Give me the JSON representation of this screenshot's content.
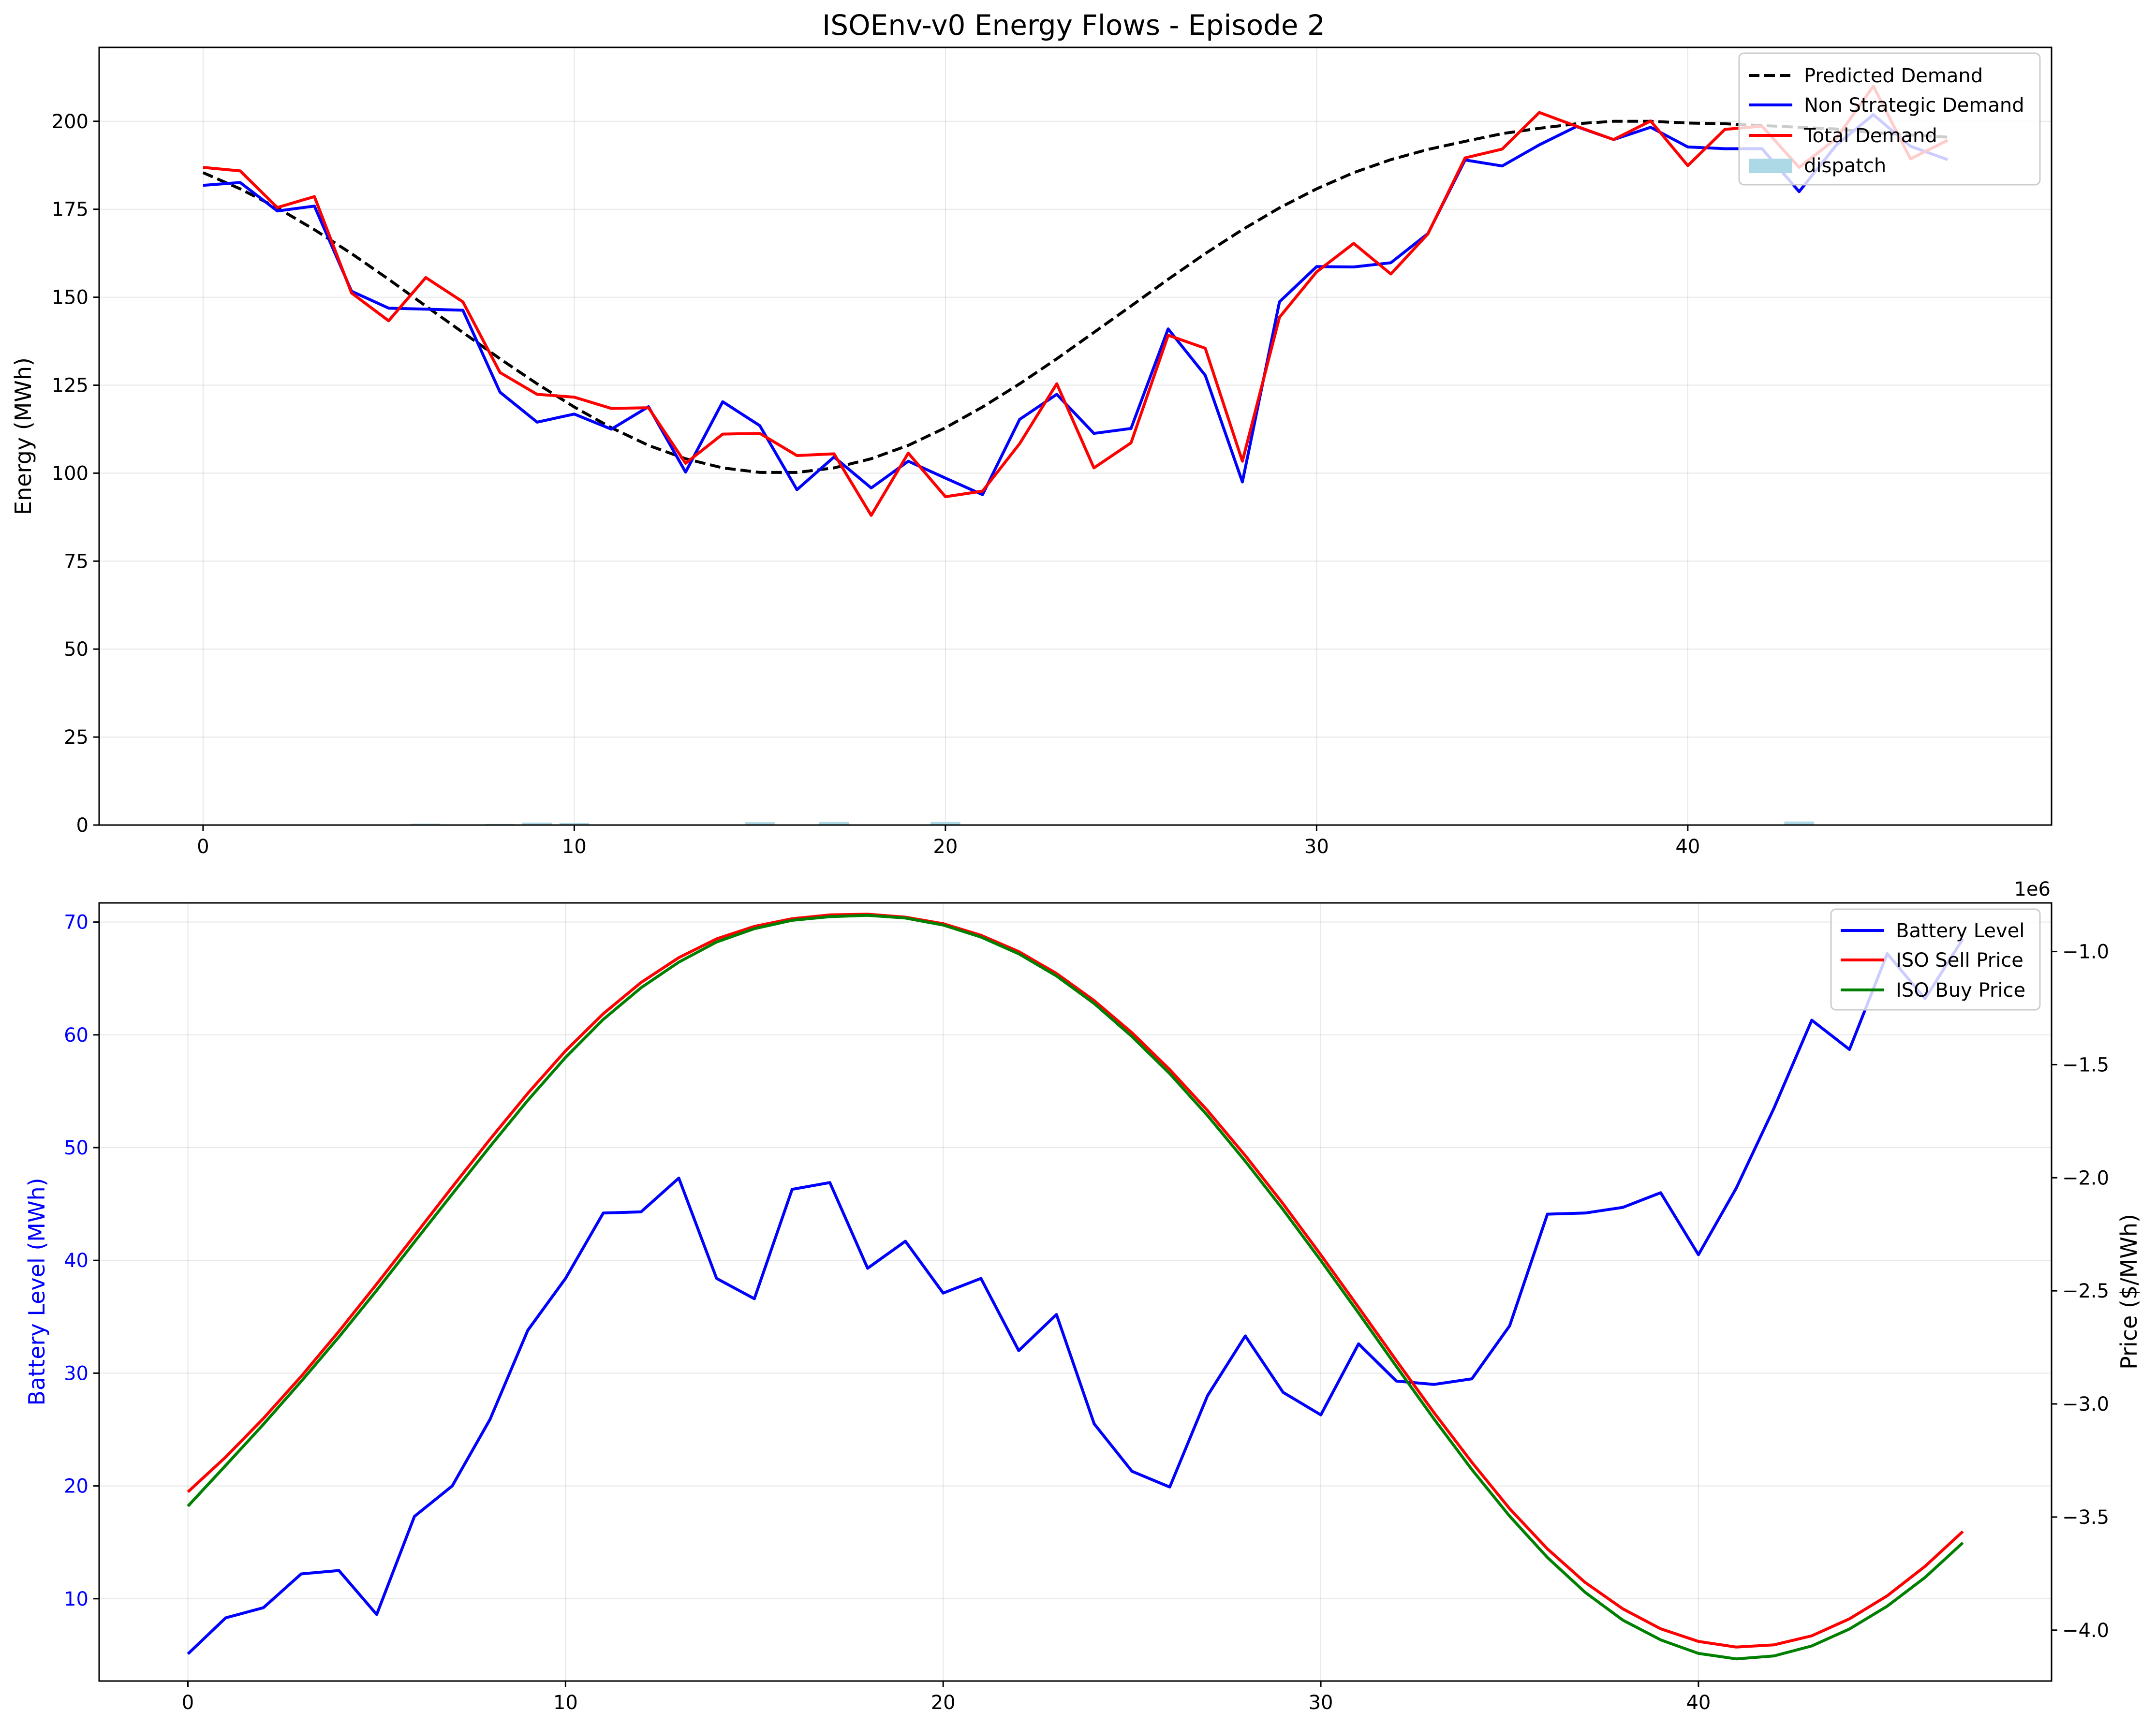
{
  "chart_data": [
    {
      "type": "line",
      "title": "ISOEnv-v0 Energy Flows - Episode 2",
      "xlabel": "",
      "ylabel": "Energy (MWh)",
      "xlim": [
        -2.8,
        49.8
      ],
      "ylim": [
        0,
        221
      ],
      "xticks": [
        0,
        10,
        20,
        30,
        40
      ],
      "yticks": [
        0,
        25,
        50,
        75,
        100,
        125,
        150,
        175,
        200
      ],
      "grid": true,
      "legend_position": "upper right",
      "x": [
        0,
        1,
        2,
        3,
        4,
        5,
        6,
        7,
        8,
        9,
        10,
        11,
        12,
        13,
        14,
        15,
        16,
        17,
        18,
        19,
        20,
        21,
        22,
        23,
        24,
        25,
        26,
        27,
        28,
        29,
        30,
        31,
        32,
        33,
        34,
        35,
        36,
        37,
        38,
        39,
        40,
        41,
        42,
        43,
        44,
        45,
        46,
        47
      ],
      "series": [
        {
          "name": "Predicted Demand",
          "style": "dashed",
          "color": "#000000",
          "values": [
            185.4,
            180.8,
            175.4,
            169.2,
            162.4,
            155.1,
            147.5,
            140.0,
            132.5,
            125.4,
            118.8,
            112.9,
            107.9,
            104.1,
            101.5,
            100.2,
            100.2,
            101.5,
            104.1,
            107.9,
            112.9,
            118.8,
            125.4,
            132.5,
            140.0,
            147.5,
            155.1,
            162.4,
            169.2,
            175.4,
            180.8,
            185.4,
            189.1,
            192.0,
            194.3,
            196.5,
            198.0,
            199.3,
            200.0,
            200.0,
            199.5,
            199.3,
            198.8,
            198.3,
            197.8,
            196.8,
            196.1,
            195.5
          ]
        },
        {
          "name": "Non Strategic Demand",
          "style": "solid",
          "color": "#0000ff",
          "values": [
            181.8,
            182.6,
            174.5,
            175.9,
            151.7,
            146.9,
            146.6,
            146.3,
            123.0,
            114.5,
            116.8,
            112.5,
            118.9,
            100.3,
            120.3,
            113.5,
            95.3,
            104.6,
            95.8,
            103.4,
            98.6,
            93.9,
            115.3,
            122.4,
            111.3,
            112.7,
            141.0,
            127.8,
            97.5,
            148.7,
            158.7,
            158.6,
            159.8,
            168.1,
            189.0,
            187.3,
            193.3,
            198.5,
            194.8,
            198.3,
            192.7,
            192.2,
            192.2,
            180.0,
            193.2,
            201.9,
            192.9,
            189.1
          ]
        },
        {
          "name": "Total Demand",
          "style": "solid",
          "color": "#ff0000",
          "values": [
            186.9,
            185.9,
            175.5,
            178.6,
            151.2,
            143.3,
            155.6,
            148.7,
            128.6,
            122.4,
            121.6,
            118.4,
            118.6,
            102.8,
            111.1,
            111.3,
            105.0,
            105.5,
            88.0,
            105.7,
            93.3,
            94.9,
            108.4,
            125.4,
            101.5,
            108.6,
            139.2,
            135.5,
            103.4,
            144.3,
            157.2,
            165.3,
            156.6,
            168.0,
            189.6,
            192.1,
            202.5,
            198.6,
            194.8,
            200.1,
            187.4,
            197.7,
            198.6,
            186.9,
            195.1,
            210.0,
            189.3,
            194.6
          ]
        }
      ],
      "bars": {
        "name": "dispatch",
        "color": "#add8e6",
        "values": [
          0,
          0,
          0,
          0,
          0,
          0,
          0.4,
          0,
          0.3,
          0.7,
          0.6,
          0,
          0,
          0,
          0,
          0.8,
          0,
          0.9,
          0,
          0,
          0.9,
          0,
          0,
          0,
          0,
          0,
          0,
          0,
          0,
          0,
          0,
          0,
          0,
          0,
          0,
          0,
          0,
          0,
          0,
          0,
          0,
          0,
          0,
          1.0,
          0,
          0,
          0,
          0
        ]
      }
    },
    {
      "type": "line",
      "title": "",
      "xlabel": "",
      "ylabel": "Battery Level (MWh)",
      "ylabel_right": "Price ($/MWh)",
      "right_axis_offset_label": "1e6",
      "xlim": [
        -2.35,
        49.35
      ],
      "ylim": [
        2.7,
        71.7
      ],
      "ylim_right": [
        -4.225,
        -0.785
      ],
      "xticks": [
        0,
        10,
        20,
        30,
        40
      ],
      "yticks": [
        10,
        20,
        30,
        40,
        50,
        60,
        70
      ],
      "yticks_right": [
        -4.0,
        -3.5,
        -3.0,
        -2.5,
        -2.0,
        -1.5,
        -1.0
      ],
      "ytick_right_labels": [
        "−4.0",
        "−3.5",
        "−3.0",
        "−2.5",
        "−2.0",
        "−1.5",
        "−1.0"
      ],
      "grid": true,
      "legend_position": "upper right",
      "x": [
        0,
        1,
        2,
        3,
        4,
        5,
        6,
        7,
        8,
        9,
        10,
        11,
        12,
        13,
        14,
        15,
        16,
        17,
        18,
        19,
        20,
        21,
        22,
        23,
        24,
        25,
        26,
        27,
        28,
        29,
        30,
        31,
        32,
        33,
        34,
        35,
        36,
        37,
        38,
        39,
        40,
        41,
        42,
        43,
        44,
        45,
        46,
        47
      ],
      "series": [
        {
          "name": "Battery Level",
          "axis": "left",
          "color": "#0000ff",
          "values": [
            5.1,
            8.3,
            9.2,
            12.2,
            12.5,
            8.6,
            17.3,
            20.0,
            25.9,
            33.8,
            38.4,
            44.2,
            44.3,
            47.3,
            38.4,
            36.6,
            46.3,
            46.9,
            39.3,
            41.7,
            37.1,
            38.4,
            32.0,
            35.2,
            25.5,
            21.3,
            19.9,
            28.0,
            33.3,
            28.3,
            26.3,
            32.6,
            29.3,
            29.0,
            29.5,
            34.2,
            44.1,
            44.2,
            44.7,
            46.0,
            40.5,
            46.4,
            53.5,
            61.3,
            58.7,
            67.2,
            63.2,
            68.5
          ]
        },
        {
          "name": "ISO Sell Price",
          "axis": "right",
          "color": "#ff0000",
          "values": [
            -3.389,
            -3.235,
            -3.064,
            -2.878,
            -2.679,
            -2.47,
            -2.256,
            -2.041,
            -1.83,
            -1.627,
            -1.439,
            -1.275,
            -1.137,
            -1.027,
            -0.944,
            -0.889,
            -0.855,
            -0.838,
            -0.835,
            -0.848,
            -0.877,
            -0.928,
            -1.0,
            -1.097,
            -1.217,
            -1.359,
            -1.522,
            -1.703,
            -1.902,
            -2.115,
            -2.341,
            -2.573,
            -2.808,
            -3.039,
            -3.258,
            -3.463,
            -3.641,
            -3.789,
            -3.906,
            -3.994,
            -4.05,
            -4.075,
            -4.065,
            -4.025,
            -3.95,
            -3.848,
            -3.718,
            -3.564
          ]
        },
        {
          "name": "ISO Buy Price",
          "axis": "right",
          "color": "#008000",
          "values": [
            -3.452,
            -3.272,
            -3.09,
            -2.9,
            -2.704,
            -2.498,
            -2.284,
            -2.072,
            -1.862,
            -1.658,
            -1.468,
            -1.3,
            -1.16,
            -1.047,
            -0.958,
            -0.899,
            -0.862,
            -0.846,
            -0.84,
            -0.852,
            -0.883,
            -0.936,
            -1.01,
            -1.108,
            -1.23,
            -1.376,
            -1.54,
            -1.725,
            -1.927,
            -2.141,
            -2.366,
            -2.598,
            -2.834,
            -3.067,
            -3.29,
            -3.496,
            -3.679,
            -3.833,
            -3.956,
            -4.043,
            -4.103,
            -4.127,
            -4.114,
            -4.07,
            -3.995,
            -3.894,
            -3.767,
            -3.614
          ]
        }
      ]
    }
  ]
}
